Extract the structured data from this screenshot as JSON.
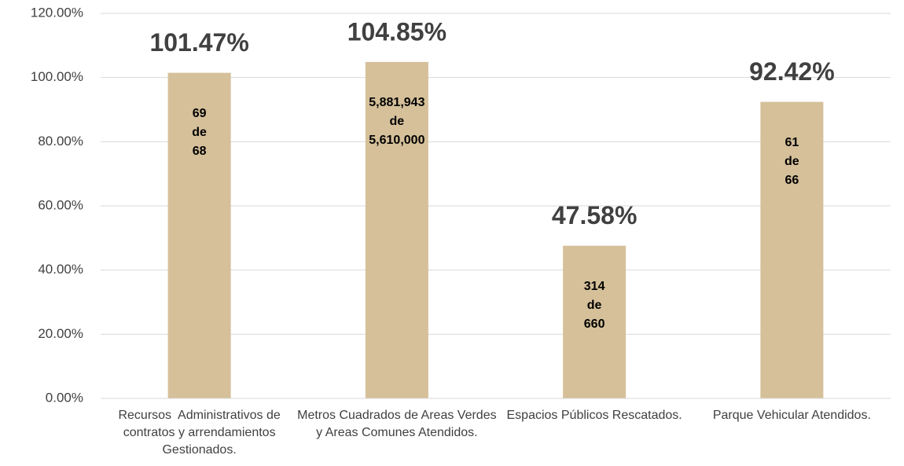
{
  "chart_data": {
    "type": "bar",
    "categories": [
      "Recursos  Administrativos de contratos y arrendamientos Gestionados.",
      "Metros Cuadrados de Areas Verdes y Areas Comunes Atendidos.",
      "Espacios Públicos Rescatados.",
      "Parque Vehicular Atendidos."
    ],
    "values": [
      101.47,
      104.85,
      47.58,
      92.42
    ],
    "value_labels": [
      "101.47%",
      "104.85%",
      "47.58%",
      "92.42%"
    ],
    "bar_notes": [
      [
        "69",
        "de",
        "68"
      ],
      [
        "5,881,943",
        "de",
        "5,610,000"
      ],
      [
        "314",
        "de",
        "660"
      ],
      [
        "61",
        "de",
        "66"
      ]
    ],
    "color": "#d5c09a",
    "ylim": [
      0,
      120
    ],
    "yticks": [
      {
        "value": 0,
        "label": "0.00%"
      },
      {
        "value": 20,
        "label": "20.00%"
      },
      {
        "value": 40,
        "label": "40.00%"
      },
      {
        "value": 60,
        "label": "60.00%"
      },
      {
        "value": 80,
        "label": "80.00%"
      },
      {
        "value": 100,
        "label": "100.00%"
      },
      {
        "value": 120,
        "label": "120.00%"
      }
    ],
    "grid": true
  }
}
